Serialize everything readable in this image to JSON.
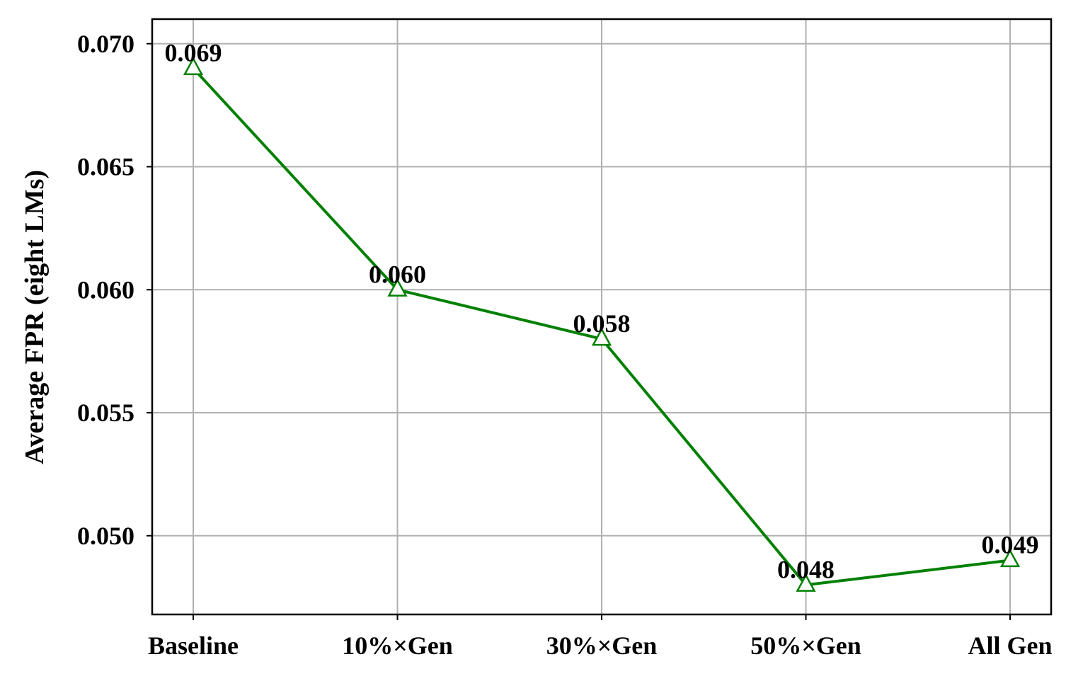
{
  "chart_data": {
    "type": "line",
    "title": "",
    "xlabel": "",
    "ylabel": "Average FPR (eight LMs)",
    "categories": [
      "Baseline",
      "10%×Gen",
      "30%×Gen",
      "50%×Gen",
      "All Gen"
    ],
    "series": [
      {
        "values": [
          0.069,
          0.06,
          0.058,
          0.048,
          0.049
        ],
        "data_labels": [
          "0.069",
          "0.060",
          "0.058",
          "0.048",
          "0.049"
        ],
        "color": "#008000",
        "marker": "triangle-open"
      }
    ],
    "ylim": [
      0.0468,
      0.071
    ],
    "yticks": [
      0.05,
      0.055,
      0.06,
      0.065,
      0.07
    ],
    "ytick_labels": [
      "0.050",
      "0.055",
      "0.060",
      "0.065",
      "0.070"
    ],
    "grid": true,
    "legend": "none"
  }
}
